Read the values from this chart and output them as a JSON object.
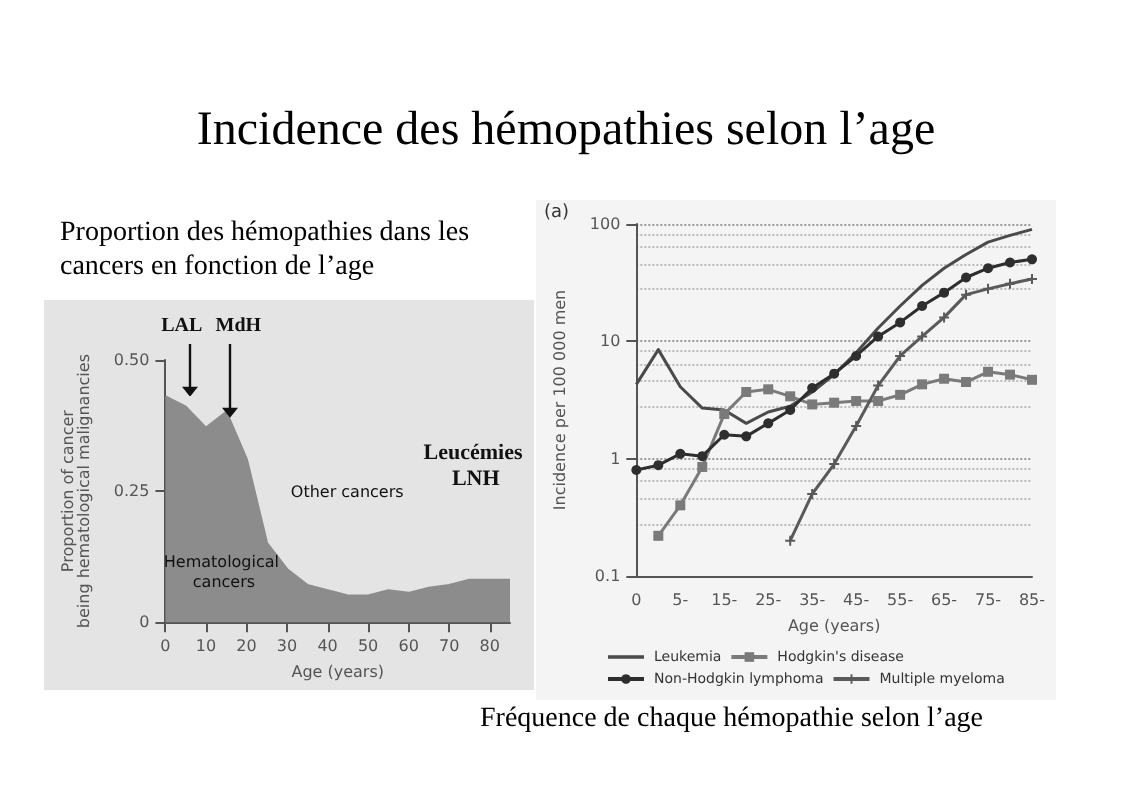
{
  "chart_data": [
    {
      "type": "area",
      "title": "Incidence des hémopathies selon l’age",
      "subtitle": "Proportion des hémopathies dans les cancers en fonction de l’age",
      "xlabel": "Age (years)",
      "ylabel": "Proportion of cancer being hematological malignancies",
      "x": [
        0,
        5,
        10,
        15,
        20,
        25,
        30,
        35,
        40,
        45,
        50,
        55,
        60,
        65,
        70,
        75,
        80,
        85
      ],
      "values": [
        0.43,
        0.41,
        0.37,
        0.4,
        0.31,
        0.15,
        0.1,
        0.07,
        0.06,
        0.05,
        0.05,
        0.06,
        0.055,
        0.065,
        0.07,
        0.08,
        0.08,
        0.08
      ],
      "color": "#8c8c8c",
      "xlim": [
        0,
        85
      ],
      "xticks": [
        0,
        10,
        20,
        30,
        40,
        50,
        60,
        70,
        80
      ],
      "ylim": [
        0,
        0.5
      ],
      "yticks": [
        0,
        0.25,
        {
          "value": 0.5,
          "label": "0.50"
        }
      ],
      "grid": false,
      "legend": false,
      "annotations": [
        {
          "text": "LAL",
          "x": 6,
          "y": 0.43
        },
        {
          "text": "MdH",
          "x": 16,
          "y": 0.39
        },
        "Other cancers",
        "Hematological cancers",
        "Leucémies LNH"
      ]
    },
    {
      "type": "line",
      "title": "Fréquence de chaque hémopathie selon l’age",
      "xlabel": "Age (years)",
      "ylabel": "Incidence per 100 000 men",
      "log": "y",
      "categories": [
        "0",
        null,
        "5-",
        null,
        "15-",
        null,
        "25-",
        null,
        "35-",
        null,
        "45-",
        null,
        "55-",
        null,
        "65-",
        null,
        "75-",
        null,
        "85-"
      ],
      "ylim": [
        0.1,
        100
      ],
      "yticks": [
        0.1,
        1,
        10,
        100
      ],
      "grid": "y",
      "legend": "bottom left",
      "annotations": [
        "(a)"
      ],
      "series": [
        {
          "name": "Leukemia",
          "color": "#4a4a4a",
          "marker": "none",
          "values": [
            4.3,
            8.5,
            4.1,
            2.7,
            2.6,
            2.0,
            2.5,
            2.8,
            3.7,
            5.2,
            8,
            13,
            20,
            30,
            42,
            55,
            70,
            80,
            90
          ]
        },
        {
          "name": "Hodgkin's disease",
          "color": "#7a7a7a",
          "marker": "square",
          "values": [
            null,
            0.22,
            0.4,
            0.85,
            2.4,
            3.7,
            3.9,
            3.4,
            2.9,
            3.0,
            3.1,
            3.1,
            3.5,
            4.3,
            4.8,
            4.5,
            5.5,
            5.2,
            4.7
          ]
        },
        {
          "name": "Non-Hodgkin lymphoma",
          "color": "#2e2e2e",
          "marker": "circle",
          "values": [
            0.8,
            0.88,
            1.1,
            1.05,
            1.6,
            1.55,
            2.0,
            2.6,
            4.0,
            5.3,
            7.5,
            11,
            14.5,
            20,
            26,
            35,
            42,
            47,
            50
          ]
        },
        {
          "name": "Multiple myeloma",
          "color": "#5a5a5a",
          "marker": "cross",
          "values": [
            null,
            null,
            null,
            null,
            null,
            null,
            null,
            0.2,
            0.5,
            0.9,
            1.9,
            4.2,
            7.5,
            11,
            16,
            25,
            28,
            31,
            34
          ]
        }
      ]
    }
  ]
}
